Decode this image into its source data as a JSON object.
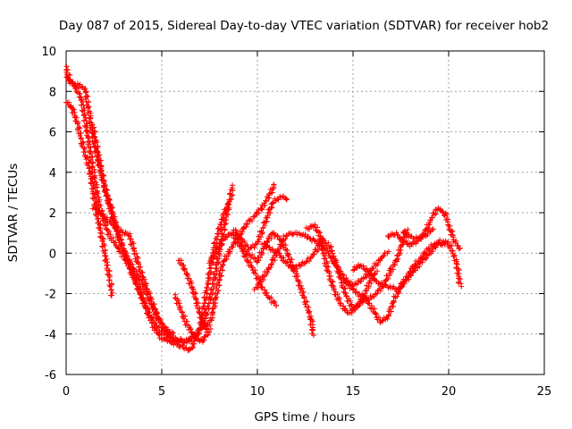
{
  "chart_data": {
    "type": "scatter",
    "title": "Day 087 of 2015, Sidereal Day-to-day VTEC variation (SDTVAR) for receiver hob2",
    "xlabel": "GPS time / hours",
    "ylabel": "SDTVAR / TECUs",
    "xlim": [
      0,
      25
    ],
    "ylim": [
      -6,
      10
    ],
    "xticks": [
      0,
      5,
      10,
      15,
      20,
      25
    ],
    "yticks": [
      -6,
      -4,
      -2,
      0,
      2,
      4,
      6,
      8,
      10
    ],
    "grid": true,
    "marker": "+",
    "color": "#ff0000",
    "series": [
      {
        "points": [
          [
            0.0,
            9.2
          ],
          [
            0.2,
            8.5
          ],
          [
            0.5,
            8.2
          ],
          [
            0.8,
            7.6
          ],
          [
            1.1,
            6.0
          ],
          [
            1.4,
            4.2
          ],
          [
            1.7,
            2.5
          ],
          [
            2.0,
            1.5
          ],
          [
            2.3,
            0.8
          ],
          [
            2.7,
            0.3
          ],
          [
            3.2,
            -0.5
          ],
          [
            3.7,
            -1.6
          ],
          [
            4.2,
            -2.8
          ],
          [
            4.6,
            -3.7
          ],
          [
            5.0,
            -4.2
          ],
          [
            5.5,
            -4.4
          ],
          [
            6.0,
            -4.6
          ],
          [
            6.5,
            -4.8
          ],
          [
            7.0,
            -3.8
          ],
          [
            7.4,
            -1.5
          ],
          [
            7.8,
            0.5
          ],
          [
            8.2,
            1.8
          ],
          [
            8.5,
            2.5
          ]
        ]
      },
      {
        "points": [
          [
            0.0,
            8.7
          ],
          [
            0.3,
            8.4
          ],
          [
            0.7,
            8.3
          ],
          [
            1.0,
            8.1
          ],
          [
            1.2,
            7.0
          ],
          [
            1.4,
            5.8
          ],
          [
            1.6,
            4.8
          ],
          [
            1.9,
            3.8
          ],
          [
            2.2,
            2.6
          ],
          [
            2.6,
            1.2
          ],
          [
            3.0,
            0.2
          ],
          [
            3.5,
            -1.0
          ],
          [
            4.0,
            -2.2
          ],
          [
            4.5,
            -3.3
          ],
          [
            5.0,
            -3.9
          ],
          [
            5.6,
            -4.3
          ],
          [
            6.2,
            -4.4
          ],
          [
            6.8,
            -4.0
          ]
        ]
      },
      {
        "points": [
          [
            0.0,
            7.5
          ],
          [
            0.3,
            7.2
          ],
          [
            0.6,
            6.4
          ],
          [
            0.9,
            5.2
          ],
          [
            1.1,
            4.6
          ],
          [
            1.3,
            3.8
          ],
          [
            1.5,
            2.5
          ],
          [
            1.7,
            1.5
          ],
          [
            1.9,
            0.6
          ],
          [
            2.1,
            -0.4
          ],
          [
            2.3,
            -1.4
          ],
          [
            2.4,
            -2.1
          ]
        ]
      },
      {
        "points": [
          [
            1.4,
            2.3
          ],
          [
            1.8,
            2.0
          ],
          [
            2.2,
            1.6
          ],
          [
            2.6,
            1.3
          ],
          [
            3.0,
            1.0
          ],
          [
            3.3,
            0.9
          ],
          [
            3.7,
            -0.3
          ],
          [
            4.0,
            -1.2
          ],
          [
            4.4,
            -2.2
          ],
          [
            4.8,
            -3.2
          ],
          [
            5.2,
            -3.8
          ],
          [
            5.6,
            -4.0
          ]
        ]
      },
      {
        "points": [
          [
            1.4,
            6.2
          ],
          [
            1.7,
            4.8
          ],
          [
            2.0,
            3.2
          ],
          [
            2.3,
            2.4
          ],
          [
            2.7,
            1.0
          ],
          [
            3.1,
            -0.1
          ],
          [
            3.6,
            -0.9
          ],
          [
            4.0,
            -1.6
          ],
          [
            4.4,
            -2.4
          ],
          [
            4.8,
            -3.2
          ],
          [
            5.2,
            -3.8
          ],
          [
            5.6,
            -4.2
          ],
          [
            6.0,
            -4.3
          ],
          [
            6.4,
            -4.4
          ],
          [
            6.8,
            -4.0
          ],
          [
            7.2,
            -3.5
          ],
          [
            7.6,
            -2.0
          ],
          [
            8.0,
            0.0
          ],
          [
            8.3,
            1.5
          ],
          [
            8.6,
            2.8
          ],
          [
            8.7,
            3.3
          ]
        ]
      },
      {
        "points": [
          [
            5.9,
            -0.3
          ],
          [
            6.3,
            -1.0
          ],
          [
            6.7,
            -2.0
          ],
          [
            7.0,
            -3.0
          ],
          [
            7.3,
            -3.8
          ],
          [
            7.6,
            -3.2
          ],
          [
            7.9,
            -1.8
          ],
          [
            8.2,
            -0.5
          ],
          [
            8.6,
            0.2
          ],
          [
            9.0,
            0.8
          ],
          [
            9.4,
            1.4
          ],
          [
            9.8,
            1.8
          ],
          [
            10.2,
            2.2
          ],
          [
            10.6,
            2.8
          ],
          [
            10.9,
            3.4
          ]
        ]
      },
      {
        "points": [
          [
            5.7,
            -2.1
          ],
          [
            6.0,
            -2.8
          ],
          [
            6.3,
            -3.5
          ],
          [
            6.7,
            -4.1
          ],
          [
            7.1,
            -4.4
          ],
          [
            7.5,
            -3.8
          ]
        ]
      },
      {
        "points": [
          [
            7.5,
            -0.5
          ],
          [
            7.9,
            0.2
          ],
          [
            8.3,
            0.8
          ],
          [
            8.7,
            1.0
          ],
          [
            9.1,
            0.4
          ],
          [
            9.5,
            -0.4
          ],
          [
            9.9,
            -1.0
          ],
          [
            10.3,
            -1.8
          ],
          [
            10.7,
            -2.3
          ],
          [
            11.0,
            -2.6
          ]
        ]
      },
      {
        "points": [
          [
            8.8,
            1.2
          ],
          [
            9.2,
            0.6
          ],
          [
            9.6,
            0.2
          ],
          [
            10.0,
            0.5
          ],
          [
            10.4,
            1.5
          ],
          [
            10.8,
            2.5
          ],
          [
            11.2,
            2.8
          ],
          [
            11.6,
            2.7
          ]
        ]
      },
      {
        "points": [
          [
            9.0,
            0.5
          ],
          [
            9.5,
            0.0
          ],
          [
            10.0,
            -0.4
          ],
          [
            10.4,
            0.4
          ],
          [
            10.8,
            1.0
          ],
          [
            11.3,
            0.6
          ],
          [
            11.8,
            -0.5
          ],
          [
            12.3,
            -1.8
          ],
          [
            12.8,
            -3.2
          ],
          [
            12.9,
            -4.0
          ]
        ]
      },
      {
        "points": [
          [
            9.9,
            -1.8
          ],
          [
            10.3,
            -1.2
          ],
          [
            10.7,
            -0.6
          ],
          [
            11.1,
            0.2
          ],
          [
            11.5,
            0.9
          ],
          [
            11.9,
            1.0
          ],
          [
            12.4,
            0.9
          ],
          [
            12.8,
            0.7
          ],
          [
            13.2,
            0.5
          ],
          [
            13.6,
            0.1
          ],
          [
            14.0,
            -0.4
          ],
          [
            14.5,
            -1.2
          ],
          [
            15.0,
            -1.6
          ],
          [
            15.5,
            -1.3
          ],
          [
            16.0,
            -0.8
          ],
          [
            16.5,
            -0.2
          ],
          [
            16.8,
            0.1
          ]
        ]
      },
      {
        "points": [
          [
            10.3,
            0.5
          ],
          [
            10.7,
            0.2
          ],
          [
            11.1,
            0.0
          ],
          [
            11.5,
            -0.5
          ],
          [
            11.9,
            -0.8
          ],
          [
            12.2,
            -0.6
          ],
          [
            12.6,
            -0.4
          ],
          [
            13.0,
            0.0
          ],
          [
            13.4,
            0.7
          ],
          [
            13.8,
            0.3
          ],
          [
            14.2,
            -0.8
          ],
          [
            14.6,
            -2.0
          ],
          [
            15.0,
            -2.8
          ],
          [
            15.4,
            -2.5
          ],
          [
            15.8,
            -1.6
          ],
          [
            16.2,
            -0.9
          ]
        ]
      },
      {
        "points": [
          [
            12.6,
            1.2
          ],
          [
            13.0,
            1.4
          ],
          [
            13.3,
            0.8
          ],
          [
            13.6,
            -0.6
          ],
          [
            14.0,
            -1.8
          ],
          [
            14.4,
            -2.6
          ],
          [
            14.8,
            -3.0
          ],
          [
            15.2,
            -2.6
          ],
          [
            15.6,
            -2.2
          ],
          [
            16.0,
            -2.7
          ],
          [
            16.4,
            -3.4
          ],
          [
            16.8,
            -3.2
          ],
          [
            17.2,
            -2.2
          ],
          [
            17.6,
            -1.5
          ],
          [
            18.0,
            -1.1
          ],
          [
            18.4,
            -0.6
          ],
          [
            18.8,
            -0.2
          ],
          [
            19.2,
            0.2
          ],
          [
            19.6,
            0.6
          ],
          [
            20.0,
            0.5
          ],
          [
            20.4,
            -0.4
          ],
          [
            20.6,
            -1.6
          ]
        ]
      },
      {
        "points": [
          [
            14.6,
            -1.4
          ],
          [
            15.0,
            -1.8
          ],
          [
            15.4,
            -2.1
          ],
          [
            15.8,
            -2.3
          ],
          [
            16.2,
            -2.0
          ],
          [
            16.6,
            -1.6
          ],
          [
            17.0,
            -1.7
          ],
          [
            17.4,
            -1.8
          ],
          [
            17.8,
            -1.2
          ],
          [
            18.2,
            -0.6
          ],
          [
            18.6,
            -0.2
          ],
          [
            19.0,
            0.3
          ],
          [
            19.4,
            0.5
          ],
          [
            19.8,
            0.4
          ]
        ]
      },
      {
        "points": [
          [
            15.0,
            -0.8
          ],
          [
            15.4,
            -0.6
          ],
          [
            15.8,
            -0.9
          ],
          [
            16.2,
            -1.4
          ],
          [
            16.6,
            -1.6
          ],
          [
            17.0,
            -0.8
          ],
          [
            17.3,
            -0.3
          ],
          [
            17.6,
            0.6
          ],
          [
            17.8,
            1.2
          ]
        ]
      },
      {
        "points": [
          [
            16.8,
            0.8
          ],
          [
            17.2,
            1.0
          ],
          [
            17.6,
            0.6
          ],
          [
            18.0,
            0.4
          ],
          [
            18.4,
            0.6
          ],
          [
            18.8,
            1.1
          ],
          [
            19.1,
            1.7
          ],
          [
            19.4,
            2.2
          ],
          [
            19.8,
            2.0
          ],
          [
            20.0,
            1.4
          ],
          [
            20.3,
            0.6
          ],
          [
            20.6,
            0.2
          ]
        ]
      },
      {
        "points": [
          [
            17.6,
            1.0
          ],
          [
            18.0,
            0.8
          ],
          [
            18.4,
            0.7
          ],
          [
            18.8,
            0.9
          ],
          [
            19.2,
            1.2
          ]
        ]
      }
    ]
  }
}
